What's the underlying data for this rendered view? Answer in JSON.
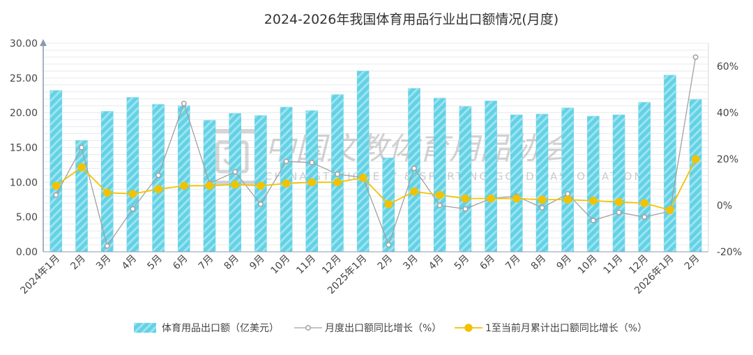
{
  "chart_data": {
    "type": "bar",
    "title": "2024-2026年我国体育用品行业出口额情况(月度)",
    "categories": [
      "2024年1月",
      "2月",
      "3月",
      "4月",
      "5月",
      "6月",
      "7月",
      "8月",
      "9月",
      "10月",
      "11月",
      "12月",
      "2025年1月",
      "2月",
      "3月",
      "4月",
      "5月",
      "6月",
      "7月",
      "8月",
      "9月",
      "10月",
      "11月",
      "12月",
      "2026年1月",
      "2月"
    ],
    "left_axis": {
      "ylim": [
        0,
        30
      ],
      "ticks": [
        "0.00",
        "5.00",
        "10.00",
        "15.00",
        "20.00",
        "25.00",
        "30.00"
      ]
    },
    "right_axis": {
      "ylim": [
        -20,
        70
      ],
      "ticks": [
        "-20%",
        "0%",
        "20%",
        "40%",
        "60%"
      ]
    },
    "series": [
      {
        "name": "体育用品出口额（亿美元）",
        "type": "bar",
        "axis": "left",
        "color": "#62d2e6",
        "values": [
          23.2,
          16.0,
          20.2,
          22.2,
          21.2,
          21.0,
          18.9,
          19.9,
          19.6,
          20.8,
          20.3,
          22.6,
          26.0,
          13.5,
          23.5,
          22.1,
          20.9,
          21.7,
          19.7,
          19.8,
          20.7,
          19.5,
          19.7,
          21.5,
          25.4,
          21.9
        ]
      },
      {
        "name": "月度出口额同比增长（%）",
        "type": "line",
        "axis": "right",
        "color": "#a0a0a0",
        "values": [
          4.5,
          25.0,
          -17.5,
          -1.5,
          13.0,
          44.0,
          9.5,
          14.5,
          0.5,
          19.0,
          18.5,
          13.5,
          12.0,
          -17.0,
          16.0,
          0.0,
          -1.5,
          3.0,
          4.0,
          -1.0,
          5.0,
          -6.5,
          -3.0,
          -5.0,
          -2.5,
          64.0
        ]
      },
      {
        "name": "1至当前月累计出口额同比增长（%）",
        "type": "line",
        "axis": "right",
        "color": "#f2c200",
        "values": [
          8.5,
          16.5,
          5.5,
          5.0,
          7.0,
          8.5,
          8.5,
          9.0,
          8.5,
          9.5,
          10.0,
          10.0,
          12.0,
          0.5,
          6.0,
          4.5,
          3.0,
          3.0,
          3.0,
          2.5,
          2.5,
          2.0,
          1.5,
          1.0,
          -2.0,
          20.0
        ]
      }
    ],
    "grid": true,
    "legend_position": "bottom"
  },
  "watermark": {
    "text": "中国文教体育用品协会",
    "subtext": "CHINA STATIONERY & SPORTING GOODS ASSOCIATION"
  }
}
